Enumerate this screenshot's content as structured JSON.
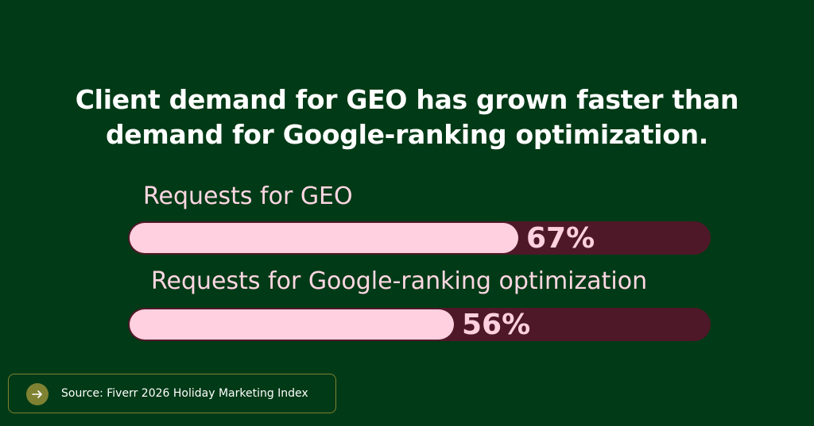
{
  "title_line1": "Client demand for GEO has grown faster than",
  "title_line2": "demand for Google-ranking optimization.",
  "colors": {
    "background": "#013a16",
    "bar_fill": "#ffd0df",
    "bar_track": "#4e1828",
    "label_text": "#ffd7e3",
    "source_border": "#7f8232"
  },
  "chart_data": {
    "type": "bar",
    "orientation": "horizontal",
    "title": "Client demand for GEO has grown faster than demand for Google-ranking optimization.",
    "categories": [
      "Requests for GEO",
      "Requests for Google-ranking optimization"
    ],
    "values": [
      67,
      56
    ],
    "value_labels": [
      "67%",
      "56%"
    ],
    "unit": "%",
    "xlim": [
      0,
      100
    ]
  },
  "source": {
    "icon": "arrow-right-icon",
    "text": "Source: Fiverr 2026 Holiday Marketing Index"
  }
}
